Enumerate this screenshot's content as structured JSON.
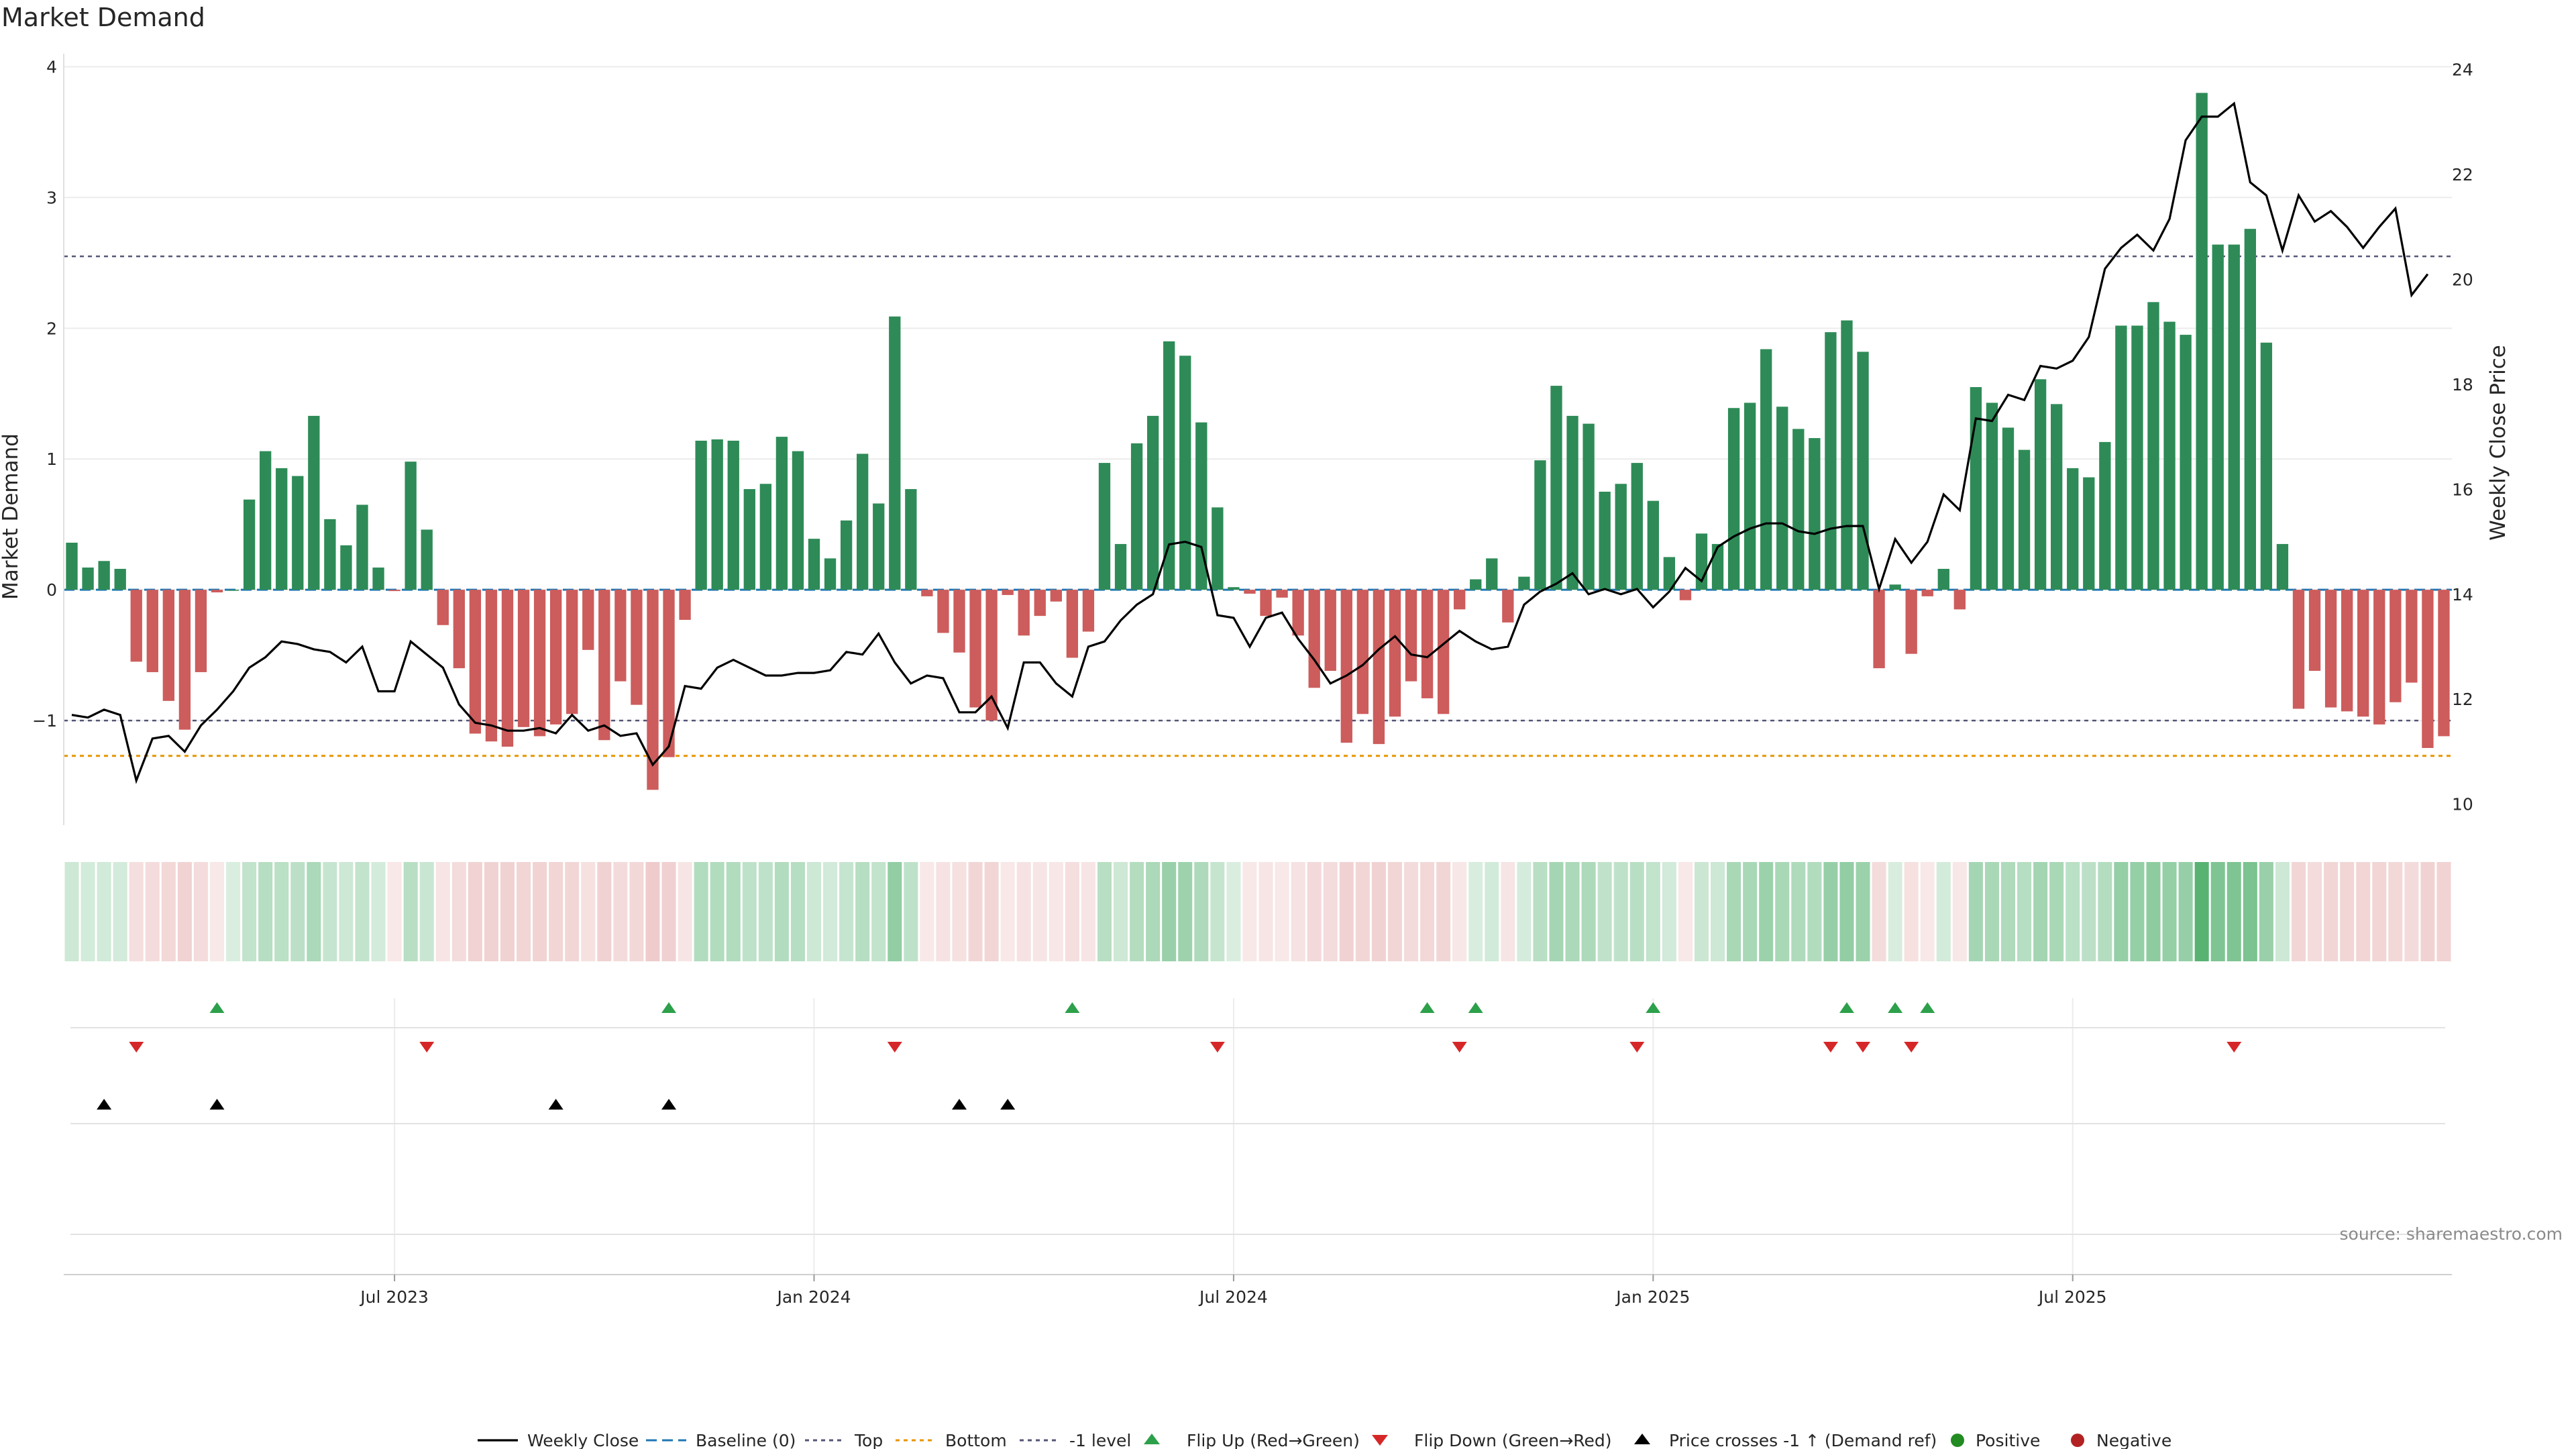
{
  "title": "Market Demand",
  "chart_data": {
    "type": "bar",
    "title": "Market Demand",
    "ylabel": "Market Demand",
    "y2label": "Weekly Close Price",
    "ylim": [
      -1.8,
      4.1
    ],
    "y2lim": [
      9.6,
      24.3
    ],
    "yticks": [
      -1,
      0,
      1,
      2,
      3,
      4
    ],
    "y2ticks": [
      10,
      12,
      14,
      16,
      18,
      20,
      22,
      24
    ],
    "xticks": [
      {
        "label": "Jul 2023",
        "week": 20
      },
      {
        "label": "Jan 2024",
        "week": 46
      },
      {
        "label": "Jul 2024",
        "week": 72
      },
      {
        "label": "Jan 2025",
        "week": 98
      },
      {
        "label": "Jul 2025",
        "week": 124
      }
    ],
    "reference_lines": {
      "baseline": 0,
      "top": 2.55,
      "bottom": -1.27,
      "minus_one": -1
    },
    "demand": [
      0.36,
      0.17,
      0.22,
      0.16,
      -0.55,
      -0.63,
      -0.85,
      -1.07,
      -0.63,
      -0.02,
      0.0,
      0.69,
      1.06,
      0.93,
      0.87,
      1.33,
      0.54,
      0.34,
      0.65,
      0.17,
      -0.01,
      0.98,
      0.46,
      -0.27,
      -0.6,
      -1.1,
      -1.16,
      -1.2,
      -1.05,
      -1.12,
      -1.03,
      -0.95,
      -0.46,
      -1.15,
      -0.7,
      -0.88,
      -1.53,
      -1.28,
      -0.23,
      1.14,
      1.15,
      1.14,
      0.77,
      0.81,
      1.17,
      1.06,
      0.39,
      0.24,
      0.53,
      1.04,
      0.66,
      2.09,
      0.77,
      -0.05,
      -0.33,
      -0.48,
      -0.9,
      -1.0,
      -0.04,
      -0.35,
      -0.2,
      -0.09,
      -0.52,
      -0.32,
      0.97,
      0.35,
      1.12,
      1.33,
      1.9,
      1.79,
      1.28,
      0.63,
      0.02,
      -0.03,
      -0.2,
      -0.06,
      -0.35,
      -0.75,
      -0.62,
      -1.17,
      -0.95,
      -1.18,
      -0.97,
      -0.7,
      -0.83,
      -0.95,
      -0.15,
      0.08,
      0.24,
      -0.25,
      0.1,
      0.99,
      1.56,
      1.33,
      1.27,
      0.75,
      0.81,
      0.97,
      0.68,
      0.25,
      -0.08,
      0.43,
      0.35,
      1.39,
      1.43,
      1.84,
      1.4,
      1.23,
      1.16,
      1.97,
      2.06,
      1.82,
      -0.6,
      0.04,
      -0.49,
      -0.05,
      0.16,
      -0.15,
      1.55,
      1.43,
      1.24,
      1.07,
      1.61,
      1.42,
      0.93,
      0.86,
      1.13,
      2.02,
      2.02,
      2.2,
      2.05,
      1.95,
      3.8,
      2.64,
      2.64,
      2.76,
      1.89,
      0.35,
      -0.91,
      -0.62,
      -0.9,
      -0.93,
      -0.97,
      -1.03,
      -0.86,
      -0.71,
      -1.21,
      -1.12
    ],
    "weekly_close": [
      11.7,
      11.65,
      11.8,
      11.7,
      10.45,
      11.25,
      11.3,
      11.0,
      11.5,
      11.8,
      12.15,
      12.6,
      12.8,
      13.1,
      13.05,
      12.95,
      12.9,
      12.7,
      13.0,
      12.15,
      12.15,
      13.1,
      12.85,
      12.6,
      11.9,
      11.55,
      11.5,
      11.4,
      11.4,
      11.45,
      11.35,
      11.7,
      11.4,
      11.5,
      11.3,
      11.35,
      10.75,
      11.1,
      12.25,
      12.2,
      12.6,
      12.75,
      12.6,
      12.45,
      12.45,
      12.5,
      12.5,
      12.55,
      12.9,
      12.85,
      13.25,
      12.7,
      12.3,
      12.45,
      12.4,
      11.75,
      11.75,
      12.05,
      11.45,
      12.7,
      12.7,
      12.3,
      12.05,
      13.0,
      13.1,
      13.5,
      13.8,
      14.0,
      14.95,
      15.0,
      14.9,
      13.6,
      13.55,
      13.0,
      13.55,
      13.65,
      13.15,
      12.75,
      12.3,
      12.45,
      12.65,
      12.95,
      13.2,
      12.85,
      12.8,
      13.05,
      13.3,
      13.1,
      12.95,
      13.0,
      13.8,
      14.05,
      14.2,
      14.4,
      14.0,
      14.1,
      14.0,
      14.1,
      13.75,
      14.05,
      14.5,
      14.25,
      14.9,
      15.1,
      15.25,
      15.35,
      15.35,
      15.2,
      15.15,
      15.25,
      15.3,
      15.3,
      14.1,
      15.05,
      14.6,
      15.0,
      15.9,
      15.6,
      17.35,
      17.3,
      17.8,
      17.7,
      18.35,
      18.3,
      18.45,
      18.9,
      20.2,
      20.6,
      20.85,
      20.55,
      21.15,
      22.65,
      23.1,
      23.1,
      23.35,
      21.85,
      21.6,
      20.55,
      21.6,
      21.1,
      21.3,
      21.0,
      20.6,
      21.0,
      21.35,
      19.7,
      20.1
    ],
    "flip_up_weeks": [
      9,
      37,
      62,
      84,
      87,
      98,
      110,
      113,
      115
    ],
    "flip_down_weeks": [
      4,
      22,
      51,
      71,
      86,
      97,
      109,
      111,
      114,
      134
    ],
    "price_cross_weeks": [
      2,
      9,
      30,
      37,
      55,
      58
    ],
    "legend": [
      "Weekly Close",
      "Baseline (0)",
      "Top",
      "Bottom",
      "-1 level",
      "Flip Up (Red→Green)",
      "Flip Down (Green→Red)",
      "Price crosses -1 ↑ (Demand ref)",
      "Positive",
      "Negative"
    ],
    "colors": {
      "positive": "#2e8b57",
      "negative": "#cd5c5c",
      "line": "#000000",
      "baseline": "#1f77b4",
      "top": "#555577",
      "bottom": "#e69500",
      "flip_up": "#2ca04a",
      "flip_down": "#d62728",
      "cross": "#000000",
      "positive_dot": "#228b22",
      "negative_dot": "#b22222"
    }
  },
  "source": "source: sharemaestro.com"
}
